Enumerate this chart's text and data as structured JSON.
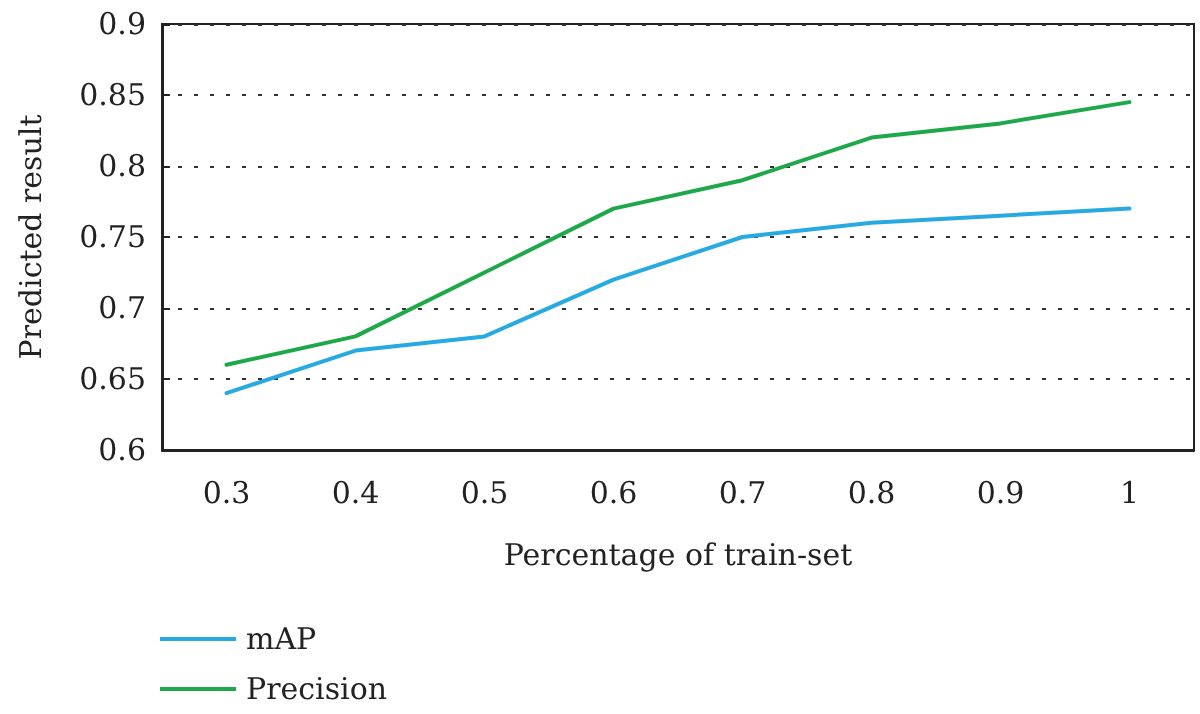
{
  "chart_data": {
    "type": "line",
    "xlabel": "Percentage of train-set",
    "ylabel": "Predicted result",
    "categories": [
      "0.3",
      "0.4",
      "0.5",
      "0.6",
      "0.7",
      "0.8",
      "0.9",
      "1"
    ],
    "series": [
      {
        "name": "mAP",
        "color": "#27aae1",
        "values": [
          0.64,
          0.67,
          0.68,
          0.72,
          0.75,
          0.76,
          0.765,
          0.77
        ]
      },
      {
        "name": "Precision",
        "color": "#1fa84a",
        "values": [
          0.66,
          0.68,
          0.725,
          0.77,
          0.79,
          0.82,
          0.83,
          0.845
        ]
      }
    ],
    "ylim": [
      0.6,
      0.9
    ],
    "yticks": [
      0.6,
      0.65,
      0.7,
      0.75,
      0.8,
      0.85,
      0.9
    ],
    "grid": "y",
    "legend": "bottom left",
    "marker": "none",
    "line_style": "solid"
  }
}
